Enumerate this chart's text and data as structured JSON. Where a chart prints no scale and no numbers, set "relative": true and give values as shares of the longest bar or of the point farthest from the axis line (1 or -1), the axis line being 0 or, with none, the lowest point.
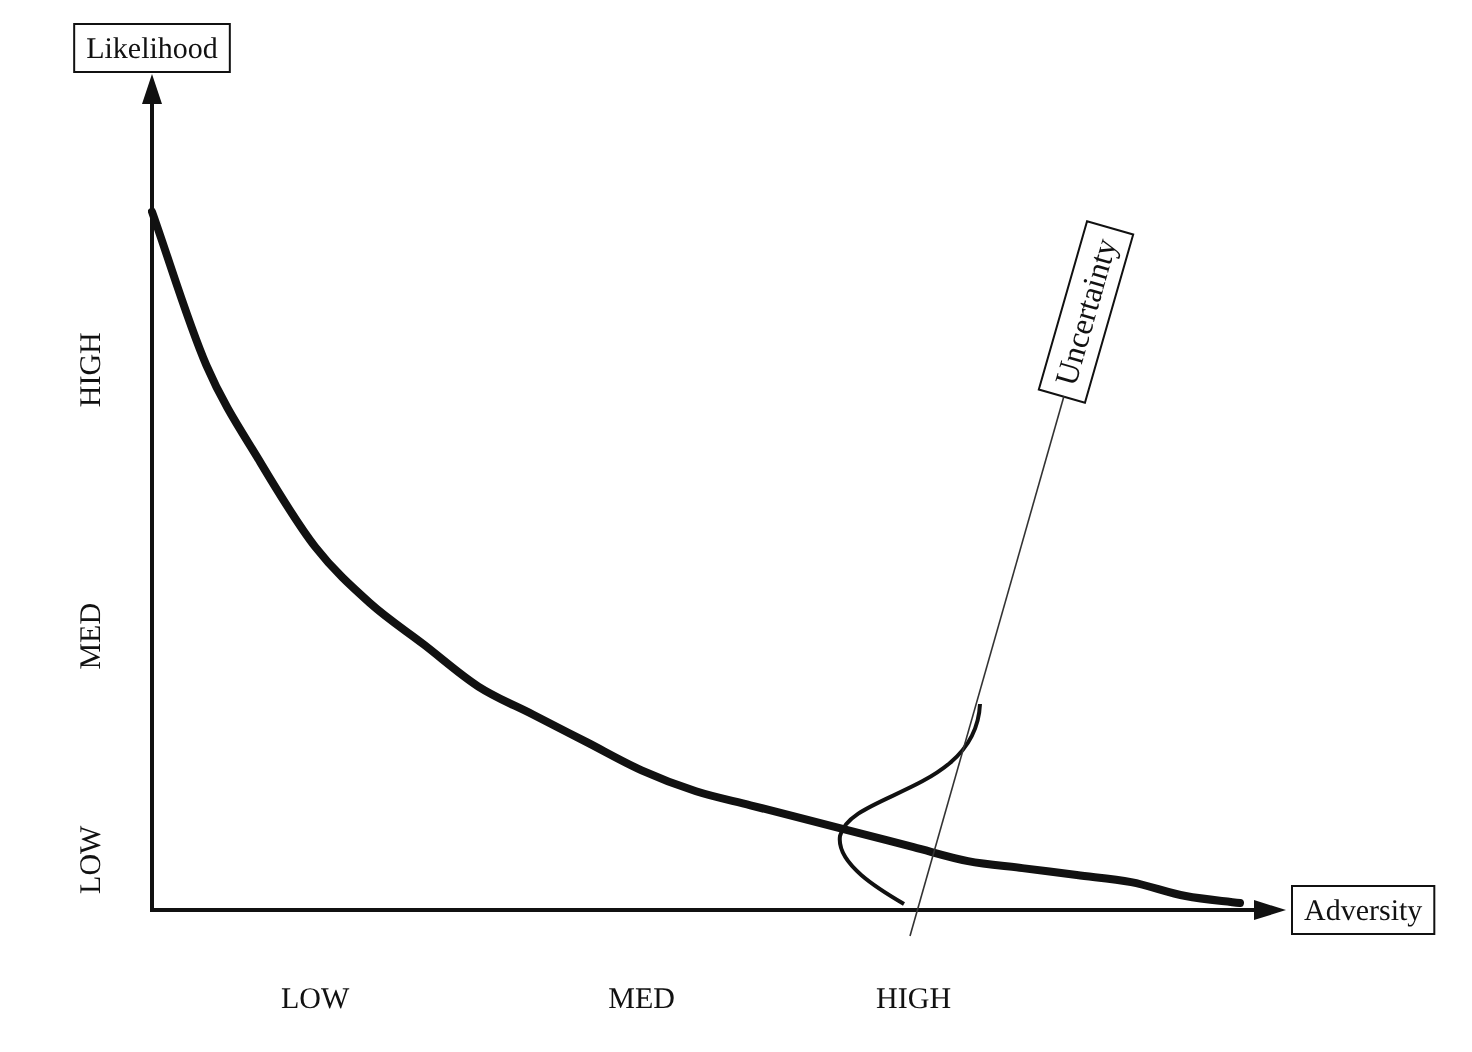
{
  "chart_data": {
    "type": "line",
    "xlabel": "Adversity",
    "ylabel": "Likelihood",
    "relative": true,
    "categories": [
      null,
      null,
      null,
      "LOW",
      null,
      null,
      null,
      null,
      null,
      "MED",
      null,
      null,
      null,
      null,
      "HIGH",
      null,
      null,
      null,
      null,
      null,
      null
    ],
    "series": [
      {
        "color": "#111111",
        "values": [
          1,
          0.78,
          0.64,
          0.52,
          0.44,
          0.38,
          0.32,
          0.28,
          0.24,
          0.2,
          0.17,
          0.15,
          0.13,
          0.11,
          0.09,
          0.07,
          0.06,
          0.05,
          0.04,
          0.02,
          0.01
        ]
      }
    ],
    "annotations": [
      "HIGH",
      "MED",
      "LOW",
      "Uncertainty"
    ],
    "marker": "none",
    "line_style": "solid"
  }
}
